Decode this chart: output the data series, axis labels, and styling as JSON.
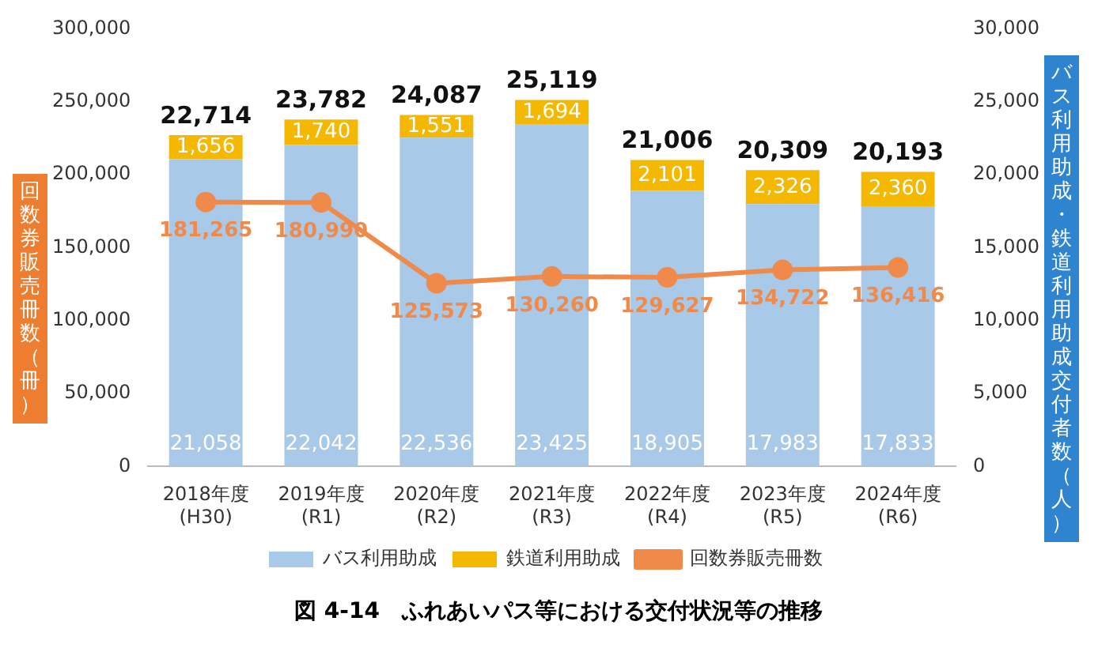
{
  "chart_data": {
    "type": "bar",
    "title": "図 4-14　ふれあいパス等における交付状況等の推移",
    "ylabel": "回数券販売冊数（冊）",
    "y2label": "バス利用助成・鉄道利用助成交付者数（人）",
    "categories": [
      "2018年度\n(H30)",
      "2019年度\n(R1)",
      "2020年度\n(R2)",
      "2021年度\n(R3)",
      "2022年度\n(R4)",
      "2023年度\n(R5)",
      "2024年度\n(R6)"
    ],
    "stacked": true,
    "legend": "bottom",
    "grid": false,
    "series": [
      {
        "name": "バス利用助成",
        "axis": "y2",
        "color": "#a9c9e8",
        "values": [
          21058,
          22042,
          22536,
          23425,
          18905,
          17983,
          17833
        ],
        "value_labels": [
          "21,058",
          "22,042",
          "22,536",
          "23,425",
          "18,905",
          "17,983",
          "17,833"
        ]
      },
      {
        "name": "鉄道利用助成",
        "axis": "y2",
        "color": "#f5b800",
        "values": [
          1656,
          1740,
          1551,
          1694,
          2101,
          2326,
          2360
        ],
        "value_labels": [
          "1,656",
          "1,740",
          "1,551",
          "1,694",
          "2,101",
          "2,326",
          "2,360"
        ]
      },
      {
        "name": "回数券販売冊数",
        "type": "line",
        "axis": "y",
        "color": "#f08a4b",
        "marker": "circle",
        "values": [
          181265,
          180990,
          125573,
          130260,
          129627,
          134722,
          136416
        ],
        "value_labels": [
          "181,265",
          "180,990",
          "125,573",
          "130,260",
          "129,627",
          "134,722",
          "136,416"
        ]
      }
    ],
    "totals": [
      "22,714",
      "23,782",
      "24,087",
      "25,119",
      "21,006",
      "20,309",
      "20,193"
    ],
    "ylim": [
      0,
      300000
    ],
    "yticks": [
      {
        "value": 0,
        "label": "0"
      },
      {
        "value": 50000,
        "label": "50,000"
      },
      {
        "value": 100000,
        "label": "100,000"
      },
      {
        "value": 150000,
        "label": "150,000"
      },
      {
        "value": 200000,
        "label": "200,000"
      },
      {
        "value": 250000,
        "label": "250,000"
      },
      {
        "value": 300000,
        "label": "300,000"
      }
    ],
    "y2lim": [
      0,
      30000
    ],
    "y2ticks": [
      {
        "value": 0,
        "label": "0"
      },
      {
        "value": 5000,
        "label": "5,000"
      },
      {
        "value": 10000,
        "label": "10,000"
      },
      {
        "value": 15000,
        "label": "15,000"
      },
      {
        "value": 20000,
        "label": "20,000"
      },
      {
        "value": 25000,
        "label": "25,000"
      },
      {
        "value": 30000,
        "label": "30,000"
      }
    ]
  }
}
